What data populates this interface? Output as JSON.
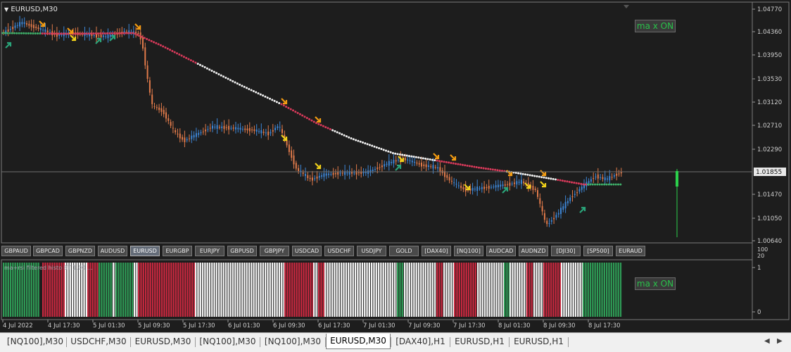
{
  "chart": {
    "title": "EURUSD,M30",
    "price_ticks": [
      "1.04770",
      "1.04360",
      "1.03950",
      "1.03530",
      "1.03120",
      "1.02710",
      "1.02290",
      "1.01855",
      "1.01470",
      "1.01050",
      "1.00640"
    ],
    "current_price": "1.01855",
    "badge_label": "ma x ON",
    "time_labels": [
      "4 Jul 2022",
      "4 Jul 17:30",
      "5 Jul 01:30",
      "5 Jul 09:30",
      "5 Jul 17:30",
      "6 Jul 01:30",
      "6 Jul 09:30",
      "6 Jul 17:30",
      "7 Jul 01:30",
      "7 Jul 09:30",
      "7 Jul 17:30",
      "8 Jul 01:30",
      "8 Jul 09:30",
      "8 Jul 17:30"
    ]
  },
  "indicator": {
    "title": "ma+rsi filtered histo BT 1.00 ...",
    "scale_top": [
      "100",
      "20"
    ],
    "scale": [
      "1",
      "0"
    ],
    "badge_label": "ma x ON"
  },
  "symbols": [
    {
      "label": "GBPAUD",
      "active": false
    },
    {
      "label": "GBPCAD",
      "active": false
    },
    {
      "label": "GBPNZD",
      "active": false
    },
    {
      "label": "AUDUSD",
      "active": false
    },
    {
      "label": "EURUSD",
      "active": true
    },
    {
      "label": "EURGBP",
      "active": false
    },
    {
      "label": "EURJPY",
      "active": false
    },
    {
      "label": "GBPUSD",
      "active": false
    },
    {
      "label": "GBPJPY",
      "active": false
    },
    {
      "label": "USDCAD",
      "active": false
    },
    {
      "label": "USDCHF",
      "active": false
    },
    {
      "label": "USDJPY",
      "active": false
    },
    {
      "label": "GOLD",
      "active": false
    },
    {
      "label": "[DAX40]",
      "active": false
    },
    {
      "label": "[NQ100]",
      "active": false
    },
    {
      "label": "AUDCAD",
      "active": false
    },
    {
      "label": "AUDNZD",
      "active": false
    },
    {
      "label": "[DJI30]",
      "active": false
    },
    {
      "label": "[SP500]",
      "active": false
    },
    {
      "label": "EURAUD",
      "active": false
    }
  ],
  "tabs": [
    {
      "label": "[NQ100],M30",
      "active": false
    },
    {
      "label": "USDCHF,M30",
      "active": false
    },
    {
      "label": "EURUSD,M30",
      "active": false
    },
    {
      "label": "[NQ100],M30",
      "active": false
    },
    {
      "label": "[NQ100],M30",
      "active": false
    },
    {
      "label": "EURUSD,M30",
      "active": true
    },
    {
      "label": "[DAX40],H1",
      "active": false
    },
    {
      "label": "EURUSD,H1",
      "active": false
    },
    {
      "label": "EURUSD,H1",
      "active": false
    }
  ],
  "colors": {
    "bull": "#3d86d6",
    "bear": "#e07a4a",
    "ma_red": "#d83a5a",
    "ma_white": "#f2f2f2",
    "ma_green": "#3fb06a",
    "hist_red": "#c8283f",
    "hist_green": "#2e9a55",
    "hist_white": "#f4f4f4",
    "arrow_orange": "#f39c12",
    "arrow_yellow": "#f1d21a",
    "arrow_green": "#2aa57a"
  },
  "icons": [
    "dropdown-triangle-icon",
    "tab-scroll-left-icon",
    "tab-scroll-right-icon"
  ]
}
